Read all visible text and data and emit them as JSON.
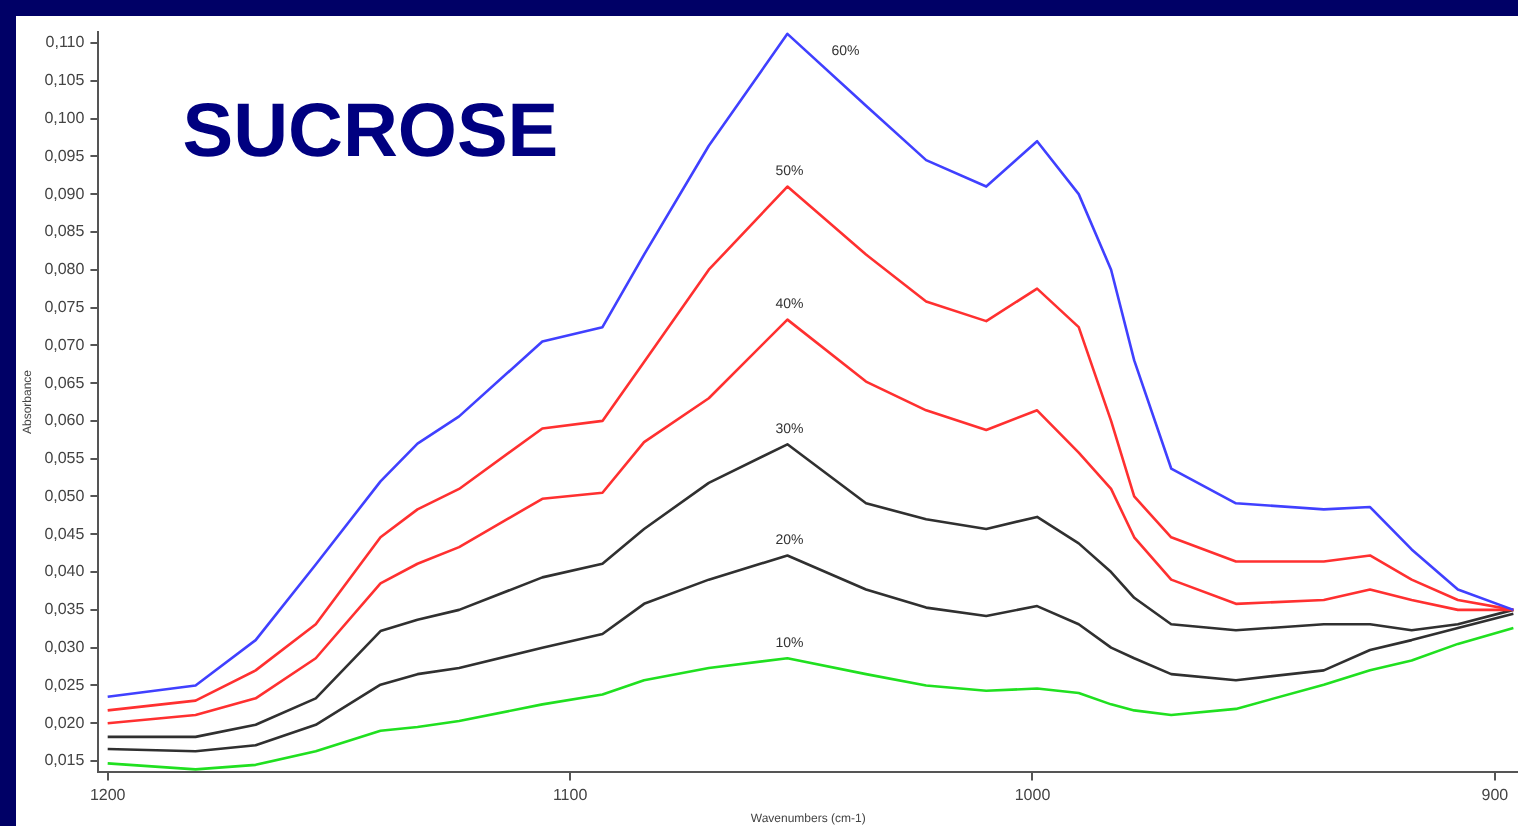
{
  "chart_data": {
    "type": "line",
    "title": "SUCROSE",
    "xlabel": "Wavenumbers (cm-1)",
    "ylabel": "Absorbance",
    "x": [
      1200,
      1181,
      1168,
      1155,
      1141,
      1133,
      1124,
      1106,
      1093,
      1084,
      1070,
      1053,
      1036,
      1023,
      1010,
      999,
      990,
      983,
      978,
      970,
      956,
      937,
      927,
      918,
      908,
      896
    ],
    "series": [
      {
        "name": "60%",
        "color": "#4040ff",
        "values": [
          0.0235,
          0.025,
          0.031,
          0.041,
          0.052,
          0.057,
          0.0606,
          0.0705,
          0.0724,
          0.082,
          0.0964,
          0.1112,
          0.1017,
          0.0945,
          0.091,
          0.097,
          0.09,
          0.08,
          0.068,
          0.0537,
          0.0491,
          0.0483,
          0.0486,
          0.043,
          0.0377,
          0.035
        ]
      },
      {
        "name": "50%",
        "color": "#ff3030",
        "values": [
          0.0217,
          0.023,
          0.027,
          0.0331,
          0.0446,
          0.0483,
          0.051,
          0.059,
          0.06,
          0.0678,
          0.08,
          0.091,
          0.082,
          0.0758,
          0.0732,
          0.0775,
          0.0724,
          0.06,
          0.05,
          0.0446,
          0.0414,
          0.0414,
          0.0422,
          0.039,
          0.0363,
          0.035
        ]
      },
      {
        "name": "40%",
        "color": "#ff3030",
        "values": [
          0.02,
          0.0211,
          0.0233,
          0.0286,
          0.0385,
          0.0411,
          0.0433,
          0.0497,
          0.0505,
          0.0572,
          0.063,
          0.0734,
          0.0652,
          0.0614,
          0.0588,
          0.0614,
          0.0558,
          0.051,
          0.0446,
          0.039,
          0.0358,
          0.0363,
          0.0377,
          0.0363,
          0.035,
          0.035
        ]
      },
      {
        "name": "30%",
        "color": "#303030",
        "values": [
          0.0182,
          0.0182,
          0.0198,
          0.0233,
          0.0322,
          0.0337,
          0.035,
          0.0393,
          0.0411,
          0.0457,
          0.0518,
          0.0569,
          0.0491,
          0.047,
          0.0457,
          0.0473,
          0.0438,
          0.04,
          0.0366,
          0.0331,
          0.0323,
          0.0331,
          0.0331,
          0.0323,
          0.0331,
          0.035
        ]
      },
      {
        "name": "20%",
        "color": "#303030",
        "values": [
          0.0166,
          0.0163,
          0.0171,
          0.0198,
          0.0251,
          0.0265,
          0.0273,
          0.03,
          0.0318,
          0.0358,
          0.039,
          0.0422,
          0.0377,
          0.0353,
          0.0342,
          0.0355,
          0.0331,
          0.03,
          0.0286,
          0.0265,
          0.0257,
          0.027,
          0.0297,
          0.031,
          0.0326,
          0.0345
        ]
      },
      {
        "name": "10%",
        "color": "#20e020",
        "values": [
          0.0147,
          0.0139,
          0.0145,
          0.0163,
          0.019,
          0.0195,
          0.0203,
          0.0225,
          0.0238,
          0.0257,
          0.0273,
          0.0286,
          0.0265,
          0.025,
          0.0243,
          0.0246,
          0.024,
          0.0225,
          0.0217,
          0.0211,
          0.0219,
          0.0251,
          0.027,
          0.0283,
          0.0305,
          0.0326
        ]
      }
    ],
    "xlim": [
      1202,
      895
    ],
    "xticks": [
      1200,
      1100,
      1000,
      900
    ],
    "ylim": [
      0.0135,
      0.1115
    ],
    "yticks": [
      {
        "value": 0.015,
        "label": "0,015"
      },
      {
        "value": 0.02,
        "label": "0,020"
      },
      {
        "value": 0.025,
        "label": "0,025"
      },
      {
        "value": 0.03,
        "label": "0,030"
      },
      {
        "value": 0.035,
        "label": "0,035"
      },
      {
        "value": 0.04,
        "label": "0,040"
      },
      {
        "value": 0.045,
        "label": "0,045"
      },
      {
        "value": 0.05,
        "label": "0,050"
      },
      {
        "value": 0.055,
        "label": "0,055"
      },
      {
        "value": 0.06,
        "label": "0,060"
      },
      {
        "value": 0.065,
        "label": "0,065"
      },
      {
        "value": 0.07,
        "label": "0,070"
      },
      {
        "value": 0.075,
        "label": "0,075"
      },
      {
        "value": 0.08,
        "label": "0,080"
      },
      {
        "value": 0.085,
        "label": "0,085"
      },
      {
        "value": 0.09,
        "label": "0,090"
      },
      {
        "value": 0.095,
        "label": "0,095"
      },
      {
        "value": 0.1,
        "label": "0,100"
      },
      {
        "value": 0.105,
        "label": "0,105"
      },
      {
        "value": 0.11,
        "label": "0,110"
      }
    ],
    "grid": false,
    "legend": false,
    "marker": "none",
    "line_style": "solid"
  }
}
